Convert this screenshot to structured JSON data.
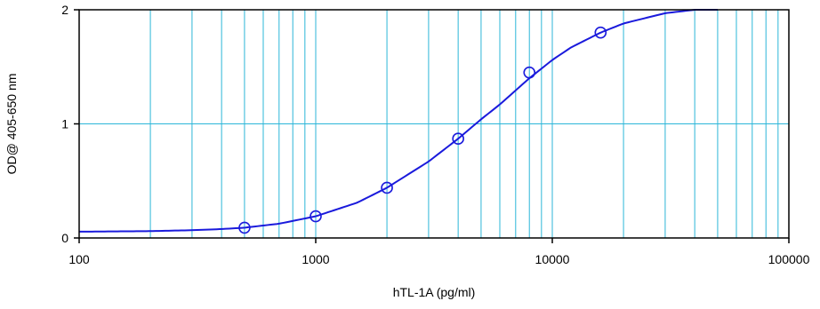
{
  "chart_data": {
    "type": "scatter",
    "xscale": "log",
    "xlim": [
      100,
      100000
    ],
    "ylim": [
      0,
      2
    ],
    "xlabel": "hTL-1A (pg/ml)",
    "ylabel": "OD@ 405-650 nm",
    "x_ticks": [
      100,
      1000,
      10000,
      100000
    ],
    "x_tick_labels": [
      "100",
      "1000",
      "10000",
      "100000"
    ],
    "y_ticks": [
      0,
      1,
      2
    ],
    "y_tick_labels": [
      "0",
      "1",
      "2"
    ],
    "grid": true,
    "series": [
      {
        "kind": "points",
        "x": [
          500,
          1000,
          2000,
          4000,
          8000,
          16000
        ],
        "y": [
          0.09,
          0.19,
          0.44,
          0.87,
          1.45,
          1.8
        ]
      },
      {
        "kind": "fit-curve",
        "x": [
          100,
          200,
          300,
          400,
          500,
          700,
          1000,
          1500,
          2000,
          3000,
          4000,
          5000,
          6000,
          8000,
          10000,
          12000,
          16000,
          20000,
          30000,
          40000,
          50000
        ],
        "y": [
          0.055,
          0.06,
          0.068,
          0.078,
          0.09,
          0.125,
          0.19,
          0.31,
          0.44,
          0.67,
          0.87,
          1.04,
          1.17,
          1.4,
          1.56,
          1.67,
          1.8,
          1.88,
          1.97,
          2.0,
          2.02
        ]
      }
    ],
    "colors": {
      "curve": "#1a1adc",
      "grid": "#2cb6d8",
      "axis": "#000000"
    }
  }
}
